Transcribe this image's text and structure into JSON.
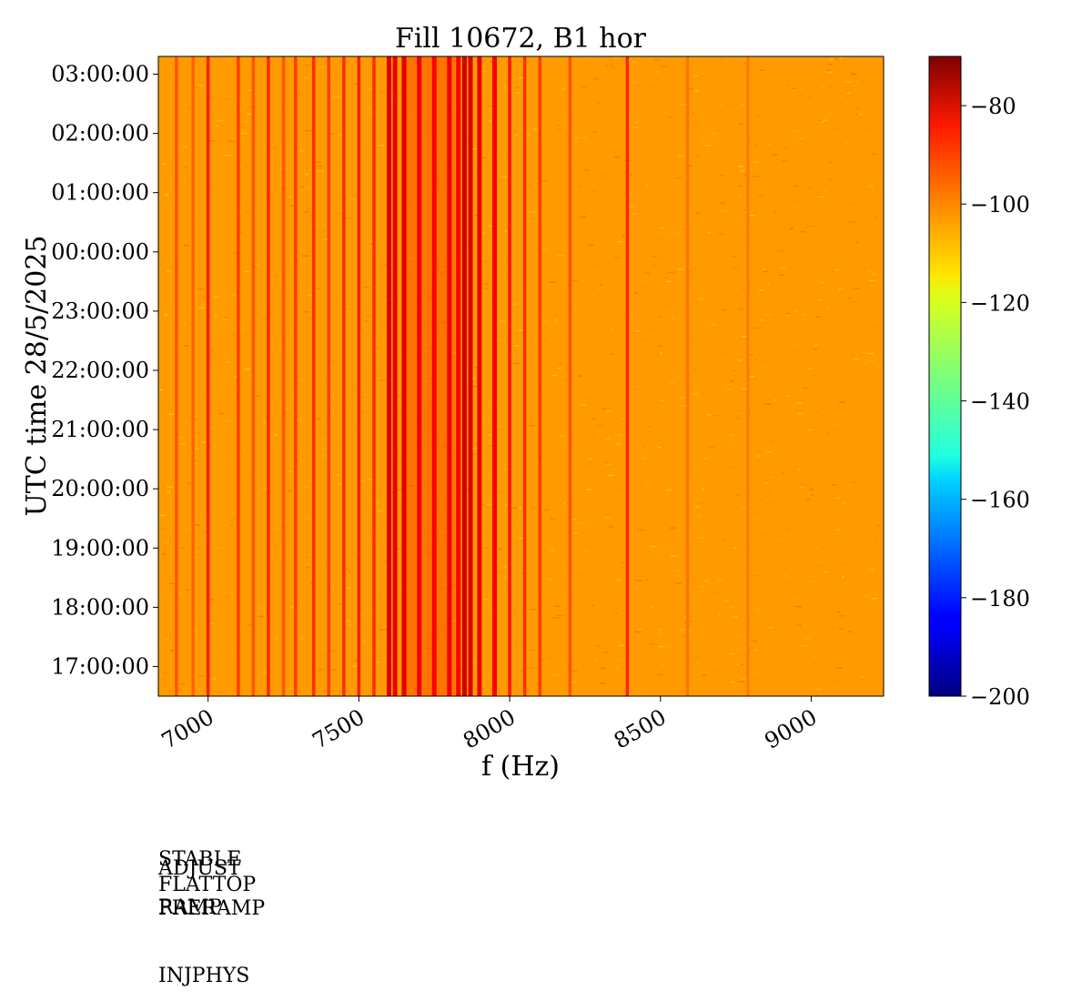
{
  "chart_data": {
    "type": "heatmap",
    "title": "Fill 10672, B1 hor",
    "xlabel": "f (Hz)",
    "ylabel": "UTC time 28/5/2025",
    "xlim": [
      6835,
      9240
    ],
    "x_ticks": [
      7000,
      7500,
      8000,
      8500,
      9000
    ],
    "y_ticks": [
      "17:00:00",
      "18:00:00",
      "19:00:00",
      "20:00:00",
      "21:00:00",
      "22:00:00",
      "23:00:00",
      "00:00:00",
      "01:00:00",
      "02:00:00",
      "03:00:00"
    ],
    "y_range_hours": [
      16.5,
      27.3
    ],
    "colorbar": {
      "min": -200,
      "max": -70,
      "ticks": [
        -80,
        -100,
        -120,
        -140,
        -160,
        -180,
        -200
      ],
      "tick_labels": [
        "−80",
        "−100",
        "−120",
        "−140",
        "−160",
        "−180",
        "−200"
      ],
      "colormap": "jet"
    },
    "background_level": -106,
    "lines": [
      {
        "f": 6895,
        "level": -97
      },
      {
        "f": 6950,
        "level": -99
      },
      {
        "f": 7000,
        "level": -90
      },
      {
        "f": 7100,
        "level": -94
      },
      {
        "f": 7150,
        "level": -97
      },
      {
        "f": 7200,
        "level": -91
      },
      {
        "f": 7250,
        "level": -97
      },
      {
        "f": 7290,
        "level": -94
      },
      {
        "f": 7350,
        "level": -92
      },
      {
        "f": 7400,
        "level": -94
      },
      {
        "f": 7450,
        "level": -92
      },
      {
        "f": 7500,
        "level": -90
      },
      {
        "f": 7550,
        "level": -92
      },
      {
        "f": 7600,
        "level": -82
      },
      {
        "f": 7620,
        "level": -84
      },
      {
        "f": 7650,
        "level": -83
      },
      {
        "f": 7700,
        "level": -85
      },
      {
        "f": 7750,
        "level": -86
      },
      {
        "f": 7800,
        "level": -85
      },
      {
        "f": 7830,
        "level": -86
      },
      {
        "f": 7850,
        "level": -80
      },
      {
        "f": 7870,
        "level": -82
      },
      {
        "f": 7900,
        "level": -84
      },
      {
        "f": 7950,
        "level": -86
      },
      {
        "f": 8000,
        "level": -89
      },
      {
        "f": 8050,
        "level": -92
      },
      {
        "f": 8100,
        "level": -94
      },
      {
        "f": 8200,
        "level": -97
      },
      {
        "f": 8390,
        "level": -91
      },
      {
        "f": 8590,
        "level": -101
      },
      {
        "f": 8790,
        "level": -102
      }
    ],
    "broad_band": {
      "f_center": 7730,
      "width": 180,
      "level": -97
    }
  },
  "machine_states": [
    "STABLE",
    "ADJUST",
    "FLATTOP",
    "RAMP",
    "PRERAMP",
    "INJPHYS"
  ]
}
